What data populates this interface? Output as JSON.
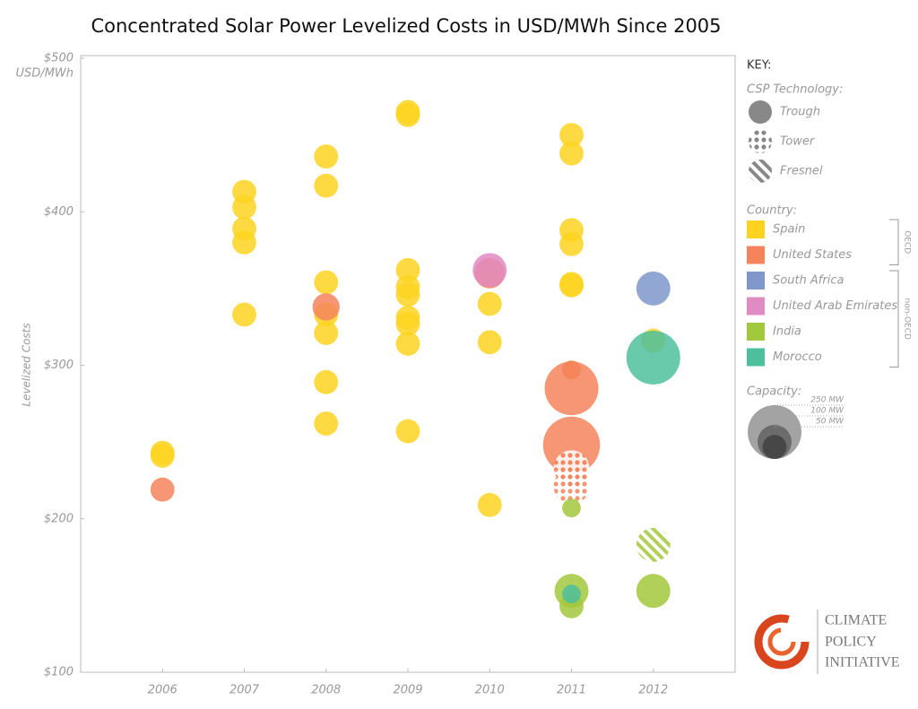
{
  "chart_data": {
    "type": "bubble",
    "title": "Concentrated Solar Power Levelized Costs in USD/MWh Since 2005",
    "y_unit": "USD/MWh",
    "ylabel": "Levelized Costs",
    "xlim": [
      2005,
      2013
    ],
    "xticks": [
      2006,
      2007,
      2008,
      2009,
      2010,
      2011,
      2012
    ],
    "ylim": [
      100,
      500
    ],
    "yticks": [
      {
        "value": 100,
        "label": "$100"
      },
      {
        "value": 200,
        "label": "$200"
      },
      {
        "value": 300,
        "label": "$300"
      },
      {
        "value": 400,
        "label": "$400"
      },
      {
        "value": 500,
        "label": "$500"
      }
    ],
    "series": [
      {
        "name": "Spain",
        "color": "#fdd320",
        "group": "OECD",
        "x": [
          2006,
          2006,
          2007,
          2007,
          2007,
          2007,
          2007,
          2008,
          2008,
          2008,
          2008,
          2008,
          2008,
          2008,
          2009,
          2009,
          2009,
          2009,
          2009,
          2009,
          2009,
          2009,
          2009,
          2010,
          2010,
          2010,
          2010,
          2011,
          2011,
          2011,
          2011,
          2011,
          2011,
          2011,
          2012
        ],
        "values": [
          241,
          243,
          413,
          403,
          389,
          380,
          333,
          436,
          417,
          354,
          333,
          321,
          289,
          262,
          465,
          463,
          362,
          351,
          346,
          331,
          327,
          314,
          257,
          359,
          340,
          315,
          209,
          450,
          438,
          388,
          379,
          353,
          352,
          297,
          316
        ],
        "sizes": [
          50,
          50,
          50,
          50,
          50,
          50,
          50,
          50,
          50,
          50,
          50,
          50,
          50,
          50,
          50,
          50,
          50,
          50,
          50,
          50,
          50,
          50,
          50,
          50,
          50,
          50,
          50,
          50,
          50,
          50,
          50,
          50,
          50,
          30,
          50
        ],
        "technology": [
          "Trough",
          "Trough",
          "Trough",
          "Trough",
          "Trough",
          "Trough",
          "Trough",
          "Trough",
          "Trough",
          "Trough",
          "Trough",
          "Trough",
          "Trough",
          "Trough",
          "Trough",
          "Trough",
          "Trough",
          "Trough",
          "Trough",
          "Trough",
          "Trough",
          "Trough",
          "Trough",
          "Trough",
          "Trough",
          "Trough",
          "Trough",
          "Trough",
          "Trough",
          "Trough",
          "Trough",
          "Trough",
          "Trough",
          "Trough",
          "Trough"
        ]
      },
      {
        "name": "United States",
        "color": "#f5845c",
        "group": "OECD",
        "x": [
          2006,
          2008,
          2010,
          2011,
          2011,
          2011,
          2011,
          2011
        ],
        "values": [
          219,
          338,
          360,
          297,
          285,
          248,
          233,
          221
        ],
        "sizes": [
          50,
          64,
          80,
          30,
          250,
          280,
          110,
          110
        ],
        "technology": [
          "Trough",
          "Trough",
          "Trough",
          "Trough",
          "Trough",
          "Trough",
          "Tower",
          "Tower"
        ]
      },
      {
        "name": "South Africa",
        "color": "#7f97cb",
        "group": "non-OECD",
        "x": [
          2012
        ],
        "values": [
          350
        ],
        "sizes": [
          100
        ],
        "technology": [
          "Trough"
        ]
      },
      {
        "name": "United Arab Emirates",
        "color": "#e08bc2",
        "group": "non-OECD",
        "x": [
          2010
        ],
        "values": [
          362
        ],
        "sizes": [
          100
        ],
        "technology": [
          "Trough"
        ]
      },
      {
        "name": "India",
        "color": "#a2c83c",
        "group": "non-OECD",
        "x": [
          2011,
          2011,
          2011,
          2012,
          2012
        ],
        "values": [
          207,
          153,
          143,
          183,
          153
        ],
        "sizes": [
          30,
          100,
          50,
          100,
          100
        ],
        "technology": [
          "Trough",
          "Trough",
          "Trough",
          "Fresnel",
          "Trough"
        ]
      },
      {
        "name": "Morocco",
        "color": "#4dbf9c",
        "group": "non-OECD",
        "x": [
          2011,
          2012
        ],
        "values": [
          151,
          305
        ],
        "sizes": [
          30,
          250
        ],
        "technology": [
          "Trough",
          "Trough"
        ]
      }
    ],
    "key": {
      "title": "KEY:",
      "technology_heading": "CSP Technology:",
      "technologies": [
        "Trough",
        "Tower",
        "Fresnel"
      ],
      "country_heading": "Country:",
      "groups": [
        "OECD",
        "non-OECD"
      ],
      "capacity_heading": "Capacity:",
      "capacities": [
        {
          "value": 250,
          "label": "250 MW"
        },
        {
          "value": 100,
          "label": "100 MW"
        },
        {
          "value": 50,
          "label": "50 MW"
        }
      ]
    }
  },
  "logo": {
    "lines": [
      "CLIMATE",
      "POLICY",
      "INITIATIVE"
    ]
  }
}
